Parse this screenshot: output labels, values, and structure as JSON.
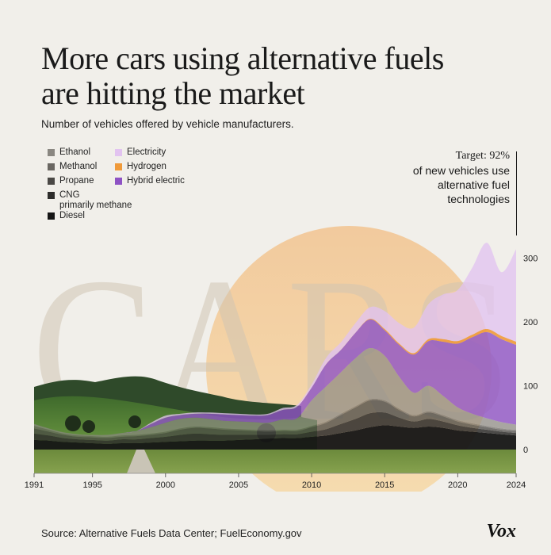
{
  "header": {
    "title": "More cars using alternative fuels are hitting the market",
    "subtitle": "Number of vehicles  offered by vehicle manufacturers."
  },
  "legend": {
    "items": [
      {
        "label": "Ethanol",
        "color": "#8a8781"
      },
      {
        "label": "Methanol",
        "color": "#6a6762"
      },
      {
        "label": "Propane",
        "color": "#4a4845"
      },
      {
        "label": "CNG\nprimarily methane",
        "color": "#2e2d2b"
      },
      {
        "label": "Diesel",
        "color": "#151515"
      },
      {
        "label": "Electricity",
        "color": "#e2c3f0"
      },
      {
        "label": "Hydrogen",
        "color": "#f09a3a"
      },
      {
        "label": "Hybrid electric",
        "color": "#8e52c4"
      }
    ]
  },
  "target": {
    "label": "Target: 92%",
    "text": "of new vehicles use alternative fuel technologies"
  },
  "background_word": "CARS",
  "chart_data": {
    "type": "area",
    "stacked": true,
    "title": "More cars using alternative fuels are hitting the market",
    "subtitle": "Number of vehicles  offered by vehicle manufacturers.",
    "x": [
      1991,
      1992,
      1993,
      1994,
      1995,
      1996,
      1997,
      1998,
      1999,
      2000,
      2001,
      2002,
      2003,
      2004,
      2005,
      2006,
      2007,
      2008,
      2009,
      2010,
      2011,
      2012,
      2013,
      2014,
      2015,
      2016,
      2017,
      2018,
      2019,
      2020,
      2021,
      2022,
      2023,
      2024
    ],
    "x_ticks": [
      1991,
      1995,
      2000,
      2005,
      2010,
      2015,
      2020,
      2024
    ],
    "y_ticks": [
      0,
      100,
      200,
      300
    ],
    "ylim": [
      -10,
      330
    ],
    "series": [
      {
        "name": "Diesel",
        "color": "#151515",
        "values": [
          15,
          14,
          12,
          11,
          10,
          9,
          10,
          10,
          11,
          12,
          13,
          14,
          14,
          14,
          15,
          16,
          17,
          18,
          18,
          20,
          22,
          26,
          30,
          35,
          38,
          36,
          34,
          36,
          34,
          30,
          28,
          26,
          24,
          22
        ]
      },
      {
        "name": "CNG\nprimarily methane",
        "color": "#2e2d2b",
        "values": [
          10,
          8,
          6,
          5,
          5,
          5,
          6,
          6,
          7,
          8,
          10,
          11,
          10,
          9,
          8,
          7,
          6,
          6,
          6,
          8,
          10,
          14,
          18,
          22,
          20,
          14,
          10,
          12,
          10,
          8,
          6,
          5,
          4,
          4
        ]
      },
      {
        "name": "Propane",
        "color": "#4a4845",
        "values": [
          8,
          6,
          5,
          4,
          4,
          4,
          4,
          5,
          5,
          6,
          8,
          9,
          9,
          8,
          7,
          6,
          5,
          5,
          5,
          7,
          10,
          14,
          18,
          20,
          17,
          12,
          8,
          10,
          8,
          6,
          5,
          4,
          3,
          3
        ]
      },
      {
        "name": "Methanol",
        "color": "#6a6762",
        "values": [
          4,
          3,
          2,
          2,
          2,
          2,
          2,
          2,
          2,
          2,
          2,
          2,
          2,
          2,
          2,
          2,
          2,
          2,
          2,
          2,
          2,
          2,
          2,
          2,
          2,
          2,
          2,
          2,
          2,
          2,
          2,
          2,
          2,
          2
        ]
      },
      {
        "name": "Ethanol",
        "color": "#8a8781",
        "values": [
          3,
          2,
          2,
          2,
          2,
          3,
          4,
          6,
          10,
          14,
          15,
          14,
          13,
          12,
          12,
          12,
          12,
          16,
          18,
          40,
          55,
          65,
          75,
          80,
          70,
          50,
          35,
          40,
          30,
          20,
          15,
          12,
          10,
          8
        ]
      },
      {
        "name": "Hybrid electric",
        "color": "#8e52c4",
        "values": [
          0,
          0,
          0,
          0,
          0,
          0,
          0,
          0,
          5,
          8,
          6,
          6,
          8,
          10,
          10,
          10,
          12,
          15,
          18,
          20,
          35,
          35,
          40,
          45,
          40,
          50,
          60,
          70,
          85,
          100,
          120,
          135,
          130,
          125
        ]
      },
      {
        "name": "Hydrogen",
        "color": "#f09a3a",
        "values": [
          0,
          0,
          0,
          0,
          0,
          0,
          0,
          0,
          0,
          0,
          0,
          0,
          0,
          0,
          0,
          0,
          0,
          0,
          0,
          0,
          0,
          0,
          0,
          1,
          2,
          2,
          2,
          3,
          4,
          4,
          4,
          5,
          5,
          5
        ]
      },
      {
        "name": "Electricity",
        "color": "#e2c3f0",
        "values": [
          0,
          0,
          0,
          0,
          0,
          0,
          0,
          0,
          2,
          3,
          2,
          2,
          2,
          2,
          2,
          2,
          2,
          3,
          3,
          5,
          10,
          12,
          15,
          18,
          28,
          32,
          40,
          55,
          70,
          80,
          105,
          135,
          100,
          145
        ]
      }
    ]
  },
  "footer": {
    "source": "Source: Alternative Fuels Data Center; FuelEconomy.gov",
    "logo": "Vox"
  }
}
